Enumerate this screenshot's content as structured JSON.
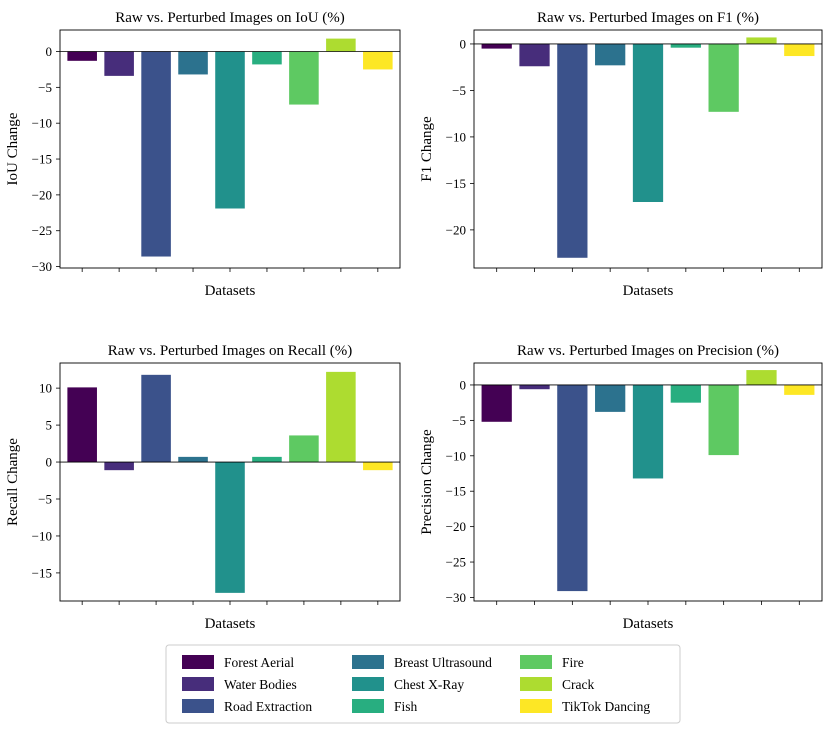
{
  "chart_data": {
    "type": "bar",
    "categories": [
      "Forest Aerial",
      "Water Bodies",
      "Road Extraction",
      "Breast Ultrasound",
      "Chest X-Ray",
      "Fish",
      "Fire",
      "Crack",
      "TikTok Dancing"
    ],
    "colors": [
      "#440154",
      "#472d7b",
      "#3b528b",
      "#2c728e",
      "#21918c",
      "#28ae80",
      "#5ec962",
      "#addc30",
      "#fde725"
    ],
    "charts": [
      {
        "id": "iou",
        "title": "Raw vs. Perturbed Images on IoU (%)",
        "xlabel": "Datasets",
        "ylabel": "IoU Change",
        "ylim": [
          -30.2,
          3.0
        ],
        "yticks": [
          0,
          -5,
          -10,
          -15,
          -20,
          -25,
          -30
        ],
        "values": [
          -1.3,
          -3.4,
          -28.6,
          -3.2,
          -21.9,
          -1.8,
          -7.4,
          1.8,
          -2.5
        ]
      },
      {
        "id": "f1",
        "title": "Raw vs. Perturbed Images on F1 (%)",
        "xlabel": "Datasets",
        "ylabel": "F1 Change",
        "ylim": [
          -24.1,
          1.5
        ],
        "yticks": [
          0,
          -5,
          -10,
          -15,
          -20
        ],
        "values": [
          -0.5,
          -2.4,
          -23.0,
          -2.3,
          -17.0,
          -0.4,
          -7.3,
          0.7,
          -1.3
        ]
      },
      {
        "id": "recall",
        "title": "Raw vs. Perturbed Images on Recall (%)",
        "xlabel": "Datasets",
        "ylabel": "Recall Change",
        "ylim": [
          -18.8,
          13.4
        ],
        "yticks": [
          10,
          5,
          0,
          -5,
          -10,
          -15
        ],
        "values": [
          10.1,
          -1.1,
          11.8,
          0.7,
          -17.7,
          0.7,
          3.6,
          12.2,
          -1.1
        ]
      },
      {
        "id": "precision",
        "title": "Raw vs. Perturbed Images on Precision (%)",
        "xlabel": "Datasets",
        "ylabel": "Precision Change",
        "ylim": [
          -30.5,
          3.1
        ],
        "yticks": [
          0,
          -5,
          -10,
          -15,
          -20,
          -25,
          -30
        ],
        "values": [
          -5.2,
          -0.6,
          -29.1,
          -3.8,
          -13.2,
          -2.5,
          -9.9,
          2.1,
          -1.4
        ]
      }
    ]
  }
}
